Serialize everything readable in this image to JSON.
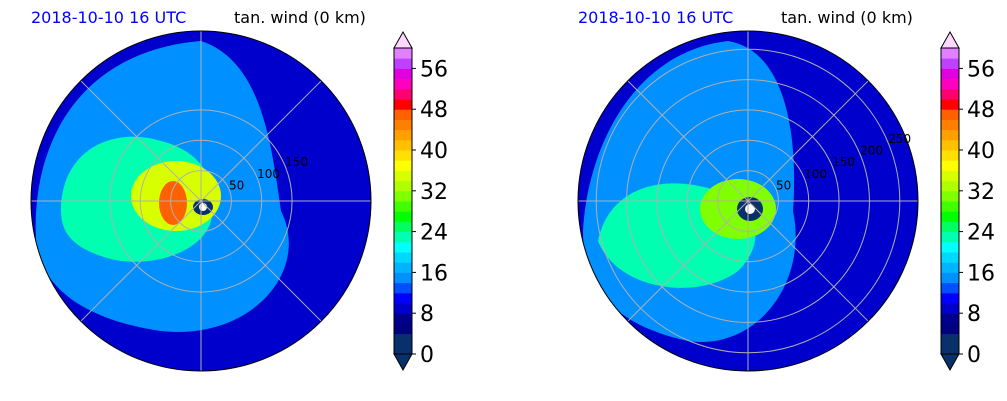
{
  "chart_data": [
    {
      "type": "heatmap",
      "projection": "polar",
      "title_left": "2018-10-10 16 UTC",
      "title_right": "tan. wind (0 km)",
      "radial_tick_labels": [
        "50",
        "100",
        "150"
      ],
      "radial_ticks": [
        50,
        100,
        150
      ],
      "max_radius": 280,
      "grid": true,
      "colorbar": {
        "min": 0,
        "max": 60,
        "step": 2,
        "extend": "both",
        "ticks": [
          0,
          8,
          16,
          24,
          32,
          40,
          48,
          56
        ]
      },
      "field_regions": [
        {
          "level": 8,
          "desc": "outer"
        },
        {
          "level": 14,
          "desc": "broad mid"
        },
        {
          "level": 22,
          "desc": "western shelf"
        },
        {
          "level": 34,
          "desc": "eyewall"
        },
        {
          "level": 46,
          "desc": "max west of eye"
        }
      ]
    },
    {
      "type": "heatmap",
      "projection": "polar",
      "title_left": "2018-10-10 16 UTC",
      "title_right": "tan. wind (0 km)",
      "radial_tick_labels": [
        "50",
        "100",
        "150",
        "200",
        "250"
      ],
      "radial_ticks": [
        50,
        100,
        150,
        200,
        250
      ],
      "max_radius": 280,
      "grid": true,
      "colorbar": {
        "min": 0,
        "max": 60,
        "step": 2,
        "extend": "both",
        "ticks": [
          0,
          8,
          16,
          24,
          32,
          40,
          48,
          56
        ]
      },
      "field_regions": [
        {
          "level": 8,
          "desc": "outer"
        },
        {
          "level": 14,
          "desc": "broad mid"
        },
        {
          "level": 22,
          "desc": "southwest"
        },
        {
          "level": 30,
          "desc": "eyewall"
        }
      ]
    }
  ],
  "colors": {
    "levels": [
      "#08306b",
      "#08306b",
      "#000080",
      "#00008b",
      "#0000cd",
      "#0000ff",
      "#0050ff",
      "#0090ff",
      "#00b4ff",
      "#00d8ff",
      "#00ffff",
      "#00ffb0",
      "#00ff60",
      "#00ff00",
      "#40ff00",
      "#80ff00",
      "#b0ff00",
      "#d8ff00",
      "#ffff00",
      "#ffe000",
      "#ffc000",
      "#ffa000",
      "#ff8000",
      "#ff6000",
      "#ff0000",
      "#ff0070",
      "#ff00c0",
      "#e000e0",
      "#c040ff",
      "#e080ff",
      "#f0b0ff",
      "#ffd8ff"
    ],
    "grid": "#b0b0b0"
  }
}
